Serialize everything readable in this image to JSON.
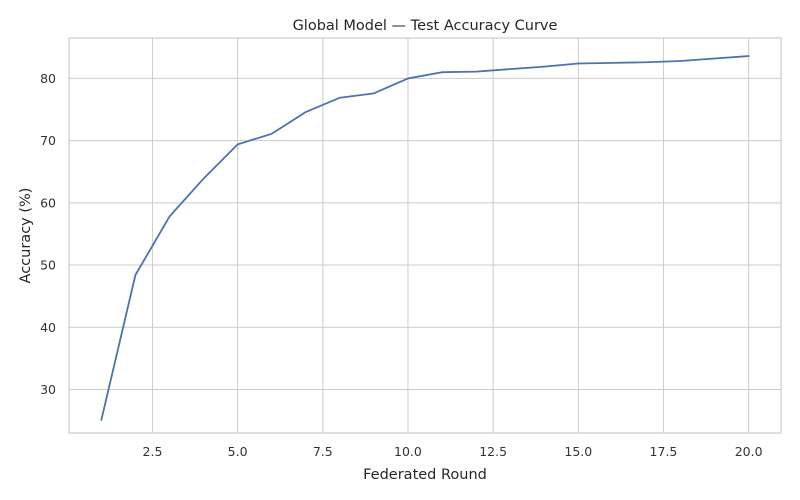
{
  "chart_data": {
    "type": "line",
    "title": "Global Model — Test Accuracy Curve",
    "xlabel": "Federated Round",
    "ylabel": "Accuracy (%)",
    "xlim": [
      0.05,
      20.95
    ],
    "ylim": [
      23.0,
      86.5
    ],
    "xticks": [
      2.5,
      5.0,
      7.5,
      10.0,
      12.5,
      15.0,
      17.5,
      20.0
    ],
    "xtick_labels": [
      "2.5",
      "5.0",
      "7.5",
      "10.0",
      "12.5",
      "15.0",
      "17.5",
      "20.0"
    ],
    "yticks": [
      30,
      40,
      50,
      60,
      70,
      80
    ],
    "ytick_labels": [
      "30",
      "40",
      "50",
      "60",
      "70",
      "80"
    ],
    "grid": true,
    "line_color": "#4c72b0",
    "series": [
      {
        "x": [
          1,
          2,
          3,
          4,
          5,
          6,
          7,
          8,
          9,
          10,
          11,
          12,
          13,
          14,
          15,
          16,
          17,
          18,
          19,
          20
        ],
        "values": [
          25.1,
          48.4,
          57.8,
          63.9,
          69.4,
          71.1,
          74.6,
          76.9,
          77.6,
          80.0,
          81.0,
          81.1,
          81.5,
          81.9,
          82.4,
          82.5,
          82.6,
          82.8,
          83.2,
          83.6
        ]
      }
    ]
  }
}
